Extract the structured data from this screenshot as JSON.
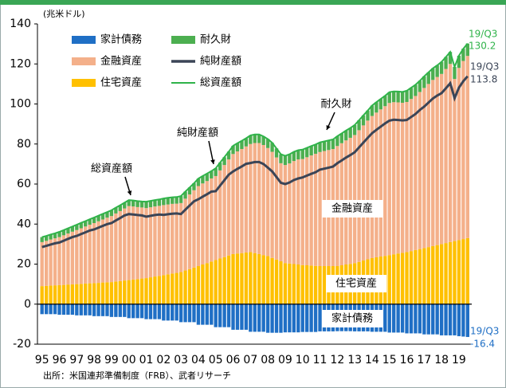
{
  "chart_data": {
    "type": "bar",
    "stacked": true,
    "unit_label": "(兆米ドル)",
    "source": "出所：米国連邦準備制度（FRB）、武者リサーチ",
    "end_label": "19/Q3",
    "annotations": [
      "総資産額",
      "純財産額",
      "耐久財",
      "金融資産",
      "住宅資産",
      "家計債務"
    ],
    "categories": [
      "95",
      null,
      null,
      null,
      "96",
      null,
      null,
      null,
      "97",
      null,
      null,
      null,
      "98",
      null,
      null,
      null,
      "99",
      null,
      null,
      null,
      "00",
      null,
      null,
      null,
      "01",
      null,
      null,
      null,
      "02",
      null,
      null,
      null,
      "03",
      null,
      null,
      null,
      "04",
      null,
      null,
      null,
      "05",
      null,
      null,
      null,
      "06",
      null,
      null,
      null,
      "07",
      null,
      null,
      null,
      "08",
      null,
      null,
      null,
      "09",
      null,
      null,
      null,
      "10",
      null,
      null,
      null,
      "11",
      null,
      null,
      null,
      "12",
      null,
      null,
      null,
      "13",
      null,
      null,
      null,
      "14",
      null,
      null,
      null,
      "15",
      null,
      null,
      null,
      "16",
      null,
      null,
      null,
      "17",
      null,
      null,
      null,
      "18",
      null,
      null,
      null,
      "19",
      null,
      null
    ],
    "ylim": [
      -20,
      140
    ],
    "yticks": [
      -20,
      0,
      20,
      40,
      60,
      80,
      100,
      120,
      140
    ],
    "grid": false,
    "series": [
      {
        "name": "家計債務",
        "type": "bar",
        "color": "#1f6fc5",
        "values": [
          -5.0,
          -5.0,
          -5.0,
          -5.0,
          -5.3,
          -5.3,
          -5.3,
          -5.3,
          -5.6,
          -5.6,
          -5.6,
          -5.6,
          -6.0,
          -6.0,
          -6.0,
          -6.0,
          -6.4,
          -6.4,
          -6.4,
          -6.4,
          -7.0,
          -7.0,
          -7.0,
          -7.0,
          -7.5,
          -7.5,
          -7.5,
          -7.5,
          -8.2,
          -8.2,
          -8.2,
          -8.2,
          -9.0,
          -9.0,
          -9.0,
          -9.0,
          -10.3,
          -10.3,
          -10.3,
          -10.3,
          -11.5,
          -11.5,
          -11.5,
          -11.5,
          -12.8,
          -12.8,
          -12.8,
          -12.8,
          -13.8,
          -13.8,
          -13.8,
          -13.8,
          -14.3,
          -14.3,
          -14.3,
          -14.3,
          -14.1,
          -14.1,
          -14.1,
          -14.1,
          -13.9,
          -13.9,
          -13.9,
          -13.9,
          -13.6,
          -13.6,
          -13.6,
          -13.6,
          -13.5,
          -13.5,
          -13.5,
          -13.5,
          -13.6,
          -13.6,
          -13.6,
          -13.6,
          -13.8,
          -13.8,
          -13.8,
          -13.8,
          -14.2,
          -14.2,
          -14.2,
          -14.2,
          -14.6,
          -14.6,
          -14.6,
          -14.6,
          -15.1,
          -15.1,
          -15.1,
          -15.1,
          -15.6,
          -15.6,
          -15.6,
          -15.6,
          -16.0,
          -16.2,
          -16.4
        ]
      },
      {
        "name": "住宅資産",
        "type": "bar",
        "color": "#ffc000",
        "values": [
          9.0,
          9.1,
          9.3,
          9.4,
          9.5,
          9.6,
          9.8,
          9.9,
          10.0,
          10.1,
          10.3,
          10.4,
          10.5,
          10.6,
          10.8,
          10.9,
          11.0,
          11.3,
          11.5,
          11.8,
          12.0,
          12.3,
          12.5,
          12.8,
          13.0,
          13.4,
          13.8,
          14.1,
          14.5,
          14.9,
          15.3,
          15.6,
          16.0,
          16.8,
          17.5,
          18.3,
          19.0,
          19.8,
          20.5,
          21.3,
          22.0,
          22.8,
          23.5,
          24.3,
          25.0,
          25.3,
          25.5,
          25.8,
          26.0,
          25.5,
          25.0,
          24.5,
          24.0,
          23.1,
          22.3,
          21.4,
          20.5,
          20.3,
          20.0,
          19.8,
          19.5,
          19.4,
          19.3,
          19.1,
          19.0,
          19.0,
          19.0,
          19.0,
          19.0,
          19.4,
          19.8,
          20.1,
          20.5,
          21.1,
          21.8,
          22.4,
          23.0,
          23.4,
          23.8,
          24.1,
          24.5,
          24.9,
          25.3,
          25.6,
          26.0,
          26.5,
          27.0,
          27.5,
          28.0,
          28.5,
          29.0,
          29.5,
          30.0,
          30.5,
          31.0,
          31.5,
          32.0,
          32.5,
          33.0
        ]
      },
      {
        "name": "金融資産",
        "type": "bar",
        "color": "#f4b08a",
        "values": [
          22.0,
          22.5,
          23.0,
          23.5,
          24.0,
          24.8,
          25.5,
          26.3,
          27.0,
          27.8,
          28.5,
          29.3,
          30.0,
          30.8,
          31.5,
          32.3,
          33.0,
          34.0,
          35.0,
          36.0,
          37.0,
          36.5,
          36.0,
          35.5,
          35.0,
          35.0,
          35.0,
          35.0,
          35.0,
          34.9,
          34.8,
          34.6,
          34.5,
          35.9,
          37.3,
          38.6,
          40.0,
          40.5,
          41.0,
          41.5,
          42.0,
          44.0,
          46.0,
          48.0,
          50.0,
          51.0,
          52.0,
          53.0,
          54.0,
          55.0,
          55.5,
          55.0,
          54.0,
          53.0,
          51.0,
          49.0,
          49.0,
          50.0,
          51.5,
          52.5,
          53.0,
          54.0,
          55.0,
          56.0,
          57.0,
          57.5,
          58.0,
          58.5,
          60.0,
          61.0,
          62.0,
          63.0,
          64.0,
          65.8,
          67.5,
          69.3,
          71.0,
          72.3,
          73.5,
          74.8,
          76.0,
          76.0,
          75.5,
          75.0,
          75.0,
          76.0,
          77.0,
          78.5,
          80.0,
          81.5,
          83.0,
          84.0,
          85.0,
          87.0,
          89.0,
          81.0,
          86.0,
          89.0,
          91.0
        ]
      },
      {
        "name": "耐久財",
        "type": "bar",
        "color": "#4caf50",
        "values": [
          2.5,
          2.5,
          2.5,
          2.5,
          2.6,
          2.6,
          2.6,
          2.6,
          2.7,
          2.7,
          2.7,
          2.7,
          2.8,
          2.8,
          2.8,
          2.8,
          2.9,
          2.9,
          2.9,
          2.9,
          3.0,
          3.0,
          3.0,
          3.0,
          3.2,
          3.2,
          3.2,
          3.2,
          3.3,
          3.3,
          3.3,
          3.3,
          3.5,
          3.5,
          3.5,
          3.5,
          3.7,
          3.7,
          3.7,
          3.7,
          3.9,
          3.9,
          3.9,
          3.9,
          4.1,
          4.1,
          4.1,
          4.1,
          4.3,
          4.3,
          4.3,
          4.3,
          4.5,
          4.5,
          4.5,
          4.5,
          4.6,
          4.6,
          4.6,
          4.6,
          4.7,
          4.7,
          4.7,
          4.7,
          4.8,
          4.8,
          4.8,
          4.8,
          4.9,
          4.9,
          4.9,
          4.9,
          5.0,
          5.0,
          5.0,
          5.0,
          5.2,
          5.2,
          5.2,
          5.2,
          5.4,
          5.4,
          5.4,
          5.4,
          5.6,
          5.6,
          5.6,
          5.6,
          5.8,
          5.8,
          5.8,
          5.8,
          6.0,
          6.0,
          6.0,
          6.0,
          6.1,
          6.1,
          6.2
        ]
      },
      {
        "name": "純財産額",
        "type": "line",
        "color": "#3b4557",
        "values": [
          28.5,
          29.1,
          29.8,
          30.4,
          30.8,
          31.7,
          32.6,
          33.5,
          34.1,
          35.0,
          35.9,
          36.8,
          37.3,
          38.2,
          39.1,
          40.0,
          40.5,
          41.8,
          43.0,
          44.3,
          45.0,
          44.8,
          44.5,
          44.3,
          43.7,
          44.1,
          44.5,
          44.8,
          44.6,
          44.9,
          45.2,
          45.3,
          45.0,
          47.2,
          49.3,
          51.4,
          52.4,
          53.7,
          54.9,
          56.2,
          56.4,
          59.2,
          61.9,
          64.7,
          66.3,
          67.6,
          68.8,
          70.1,
          70.5,
          71.0,
          71.0,
          70.0,
          68.2,
          66.3,
          63.5,
          60.6,
          60.0,
          60.8,
          62.0,
          62.8,
          63.3,
          64.2,
          65.1,
          65.9,
          67.2,
          67.7,
          68.2,
          68.7,
          70.4,
          71.8,
          73.2,
          74.5,
          75.9,
          78.3,
          80.7,
          83.1,
          85.4,
          87.1,
          88.7,
          90.3,
          91.7,
          92.1,
          92.0,
          91.8,
          92.0,
          93.5,
          95.0,
          97.0,
          98.7,
          100.7,
          102.7,
          104.2,
          105.4,
          107.9,
          110.4,
          102.9,
          108.1,
          111.4,
          113.8
        ]
      },
      {
        "name": "総資産額",
        "type": "line",
        "color": "#2fb34a",
        "values": [
          33.5,
          34.1,
          34.8,
          35.4,
          36.1,
          37.0,
          37.9,
          38.8,
          39.7,
          40.6,
          41.5,
          42.4,
          43.3,
          44.2,
          45.1,
          46.0,
          46.9,
          48.2,
          49.4,
          50.7,
          52.0,
          51.8,
          51.5,
          51.3,
          51.2,
          51.6,
          52.0,
          52.3,
          52.8,
          53.1,
          53.4,
          53.5,
          54.0,
          56.2,
          58.3,
          60.4,
          62.7,
          64.0,
          65.2,
          66.5,
          67.9,
          70.7,
          73.4,
          76.2,
          79.1,
          80.4,
          81.6,
          82.9,
          84.3,
          84.8,
          84.8,
          83.8,
          82.5,
          80.6,
          77.8,
          74.9,
          74.1,
          74.9,
          76.1,
          76.9,
          77.2,
          78.1,
          79.0,
          79.8,
          80.8,
          81.3,
          81.8,
          82.3,
          83.9,
          85.3,
          86.7,
          88.0,
          89.5,
          91.9,
          94.3,
          96.7,
          99.2,
          100.9,
          102.5,
          104.1,
          105.9,
          106.3,
          106.2,
          106.0,
          106.6,
          108.1,
          109.6,
          111.6,
          113.8,
          115.8,
          117.8,
          119.3,
          121.0,
          123.5,
          126.0,
          118.5,
          124.1,
          127.6,
          130.2
        ]
      }
    ]
  }
}
